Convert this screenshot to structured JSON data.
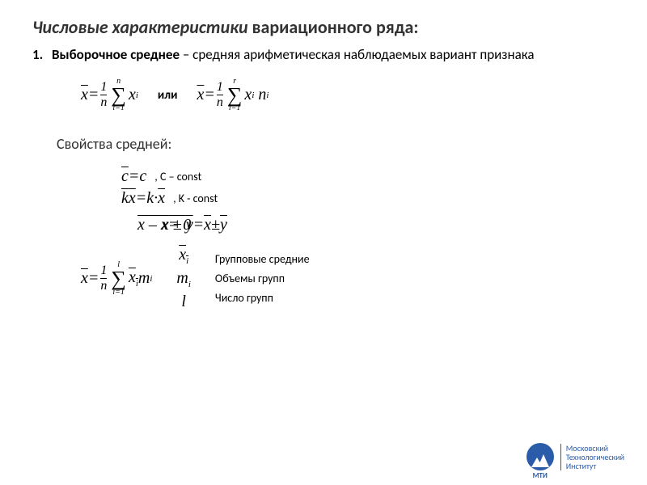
{
  "title_italic": "Числовые характеристики",
  "title_rest": " вариационного ряда:",
  "item1_num": "1.",
  "item1_bold": "Выборочное среднее",
  "item1_rest": " – средняя арифметическая наблюдаемых вариант признака",
  "or_word": "или",
  "subheading": "Свойства средней:",
  "prop1_annot": ",  С – const",
  "prop2_annot": ",  K - const",
  "legend": {
    "l1": "Групповые средние",
    "l2": "Объемы групп",
    "l3": "Число групп"
  },
  "logo": {
    "line1": "Московский",
    "line2": "Технологический",
    "line3": "Институт",
    "abbr": "МТИ"
  },
  "math": {
    "xbar": "x",
    "eq": " = ",
    "one_over_n_num": "1",
    "one_over_n_den": "n",
    "sum_top_n": "n",
    "sum_top_r": "r",
    "sum_top_l": "l",
    "sum_bot": "i=1",
    "xi": "x",
    "i": "i",
    "ni": "n",
    "mi": "m",
    "c": "c",
    "k": "k",
    "dot": " · ",
    "pm": " ± ",
    "y": "y",
    "zero": " = 0",
    "l": "l",
    "minus": " – "
  },
  "style": {
    "background": "#ffffff",
    "text_color": "#333333",
    "logo_color": "#2a5caa",
    "title_fontsize": 22,
    "body_fontsize": 17,
    "formula_fontsize": 20,
    "annot_fontsize": 14
  }
}
